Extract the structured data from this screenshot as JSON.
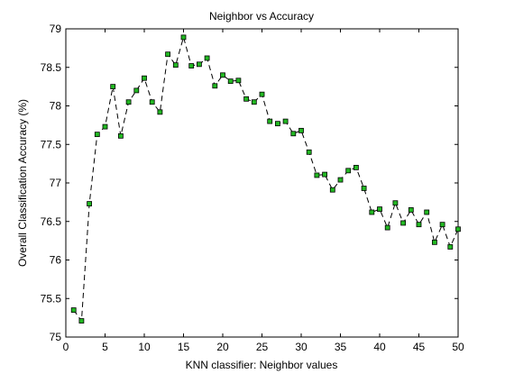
{
  "chart_data": {
    "type": "line",
    "title": "Neighbor vs Accuracy",
    "xlabel": "KNN classifier: Neighbor values",
    "ylabel": "Overall Classification Accuracy (%)",
    "xlim": [
      0,
      50
    ],
    "ylim": [
      75,
      79
    ],
    "xticks": [
      0,
      5,
      10,
      15,
      20,
      25,
      30,
      35,
      40,
      45,
      50
    ],
    "yticks": [
      75,
      75.5,
      76,
      76.5,
      77,
      77.5,
      78,
      78.5,
      79
    ],
    "grid": false,
    "line_style": "dashed",
    "marker": "square",
    "colors": {
      "line": "#000000",
      "marker_fill": "#22b822",
      "marker_edge": "#000000"
    },
    "series": [
      {
        "x": [
          1,
          2,
          3,
          4,
          5,
          6,
          7,
          8,
          9,
          10,
          11,
          12,
          13,
          14,
          15,
          16,
          17,
          18,
          19,
          20,
          21,
          22,
          23,
          24,
          25,
          26,
          27,
          28,
          29,
          30,
          31,
          32,
          33,
          34,
          35,
          36,
          37,
          38,
          39,
          40,
          41,
          42,
          43,
          44,
          45,
          46,
          47,
          48,
          49,
          50
        ],
        "values": [
          75.35,
          75.21,
          76.73,
          77.63,
          77.73,
          78.25,
          77.61,
          78.05,
          78.2,
          78.36,
          78.05,
          77.92,
          78.67,
          78.53,
          78.89,
          78.52,
          78.54,
          78.62,
          78.26,
          78.4,
          78.32,
          78.33,
          78.09,
          78.05,
          78.15,
          77.8,
          77.77,
          77.8,
          77.64,
          77.68,
          77.4,
          77.1,
          77.11,
          76.91,
          77.04,
          77.16,
          77.2,
          76.93,
          76.62,
          76.66,
          76.42,
          76.74,
          76.48,
          76.65,
          76.46,
          76.62,
          76.23,
          76.46,
          76.17,
          76.4
        ]
      }
    ]
  }
}
